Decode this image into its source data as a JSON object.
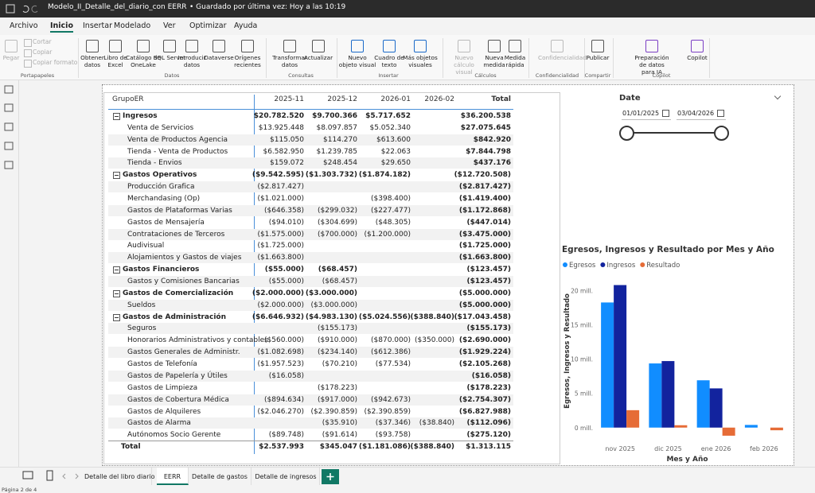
{
  "title_bar": {
    "title": "Modelo_II_Detalle_del_diario_con EERR",
    "save_status": "• Guardado por última vez: Hoy a las 10:19"
  },
  "menu": [
    "Archivo",
    "Inicio",
    "Insertar",
    "Modelado",
    "Ver",
    "Optimizar",
    "Ayuda"
  ],
  "ribbon": {
    "groups": [
      {
        "label": "Portapapeles",
        "buttons": [
          "Pegar",
          "Cortar",
          "Copiar",
          "Copiar formato"
        ]
      },
      {
        "label": "Datos",
        "buttons": [
          "Obtener datos",
          "Libro de Excel",
          "Catálogo de OneLake",
          "SQL Server",
          "Introducir datos",
          "Dataverse",
          "Orígenes recientes"
        ]
      },
      {
        "label": "Consultas",
        "buttons": [
          "Transformar datos",
          "Actualizar"
        ]
      },
      {
        "label": "Insertar",
        "buttons": [
          "Nuevo objeto visual",
          "Cuadro de texto",
          "Más objetos visuales"
        ]
      },
      {
        "label": "Cálculos",
        "buttons": [
          "Nuevo cálculo visual",
          "Nueva medida",
          "Medida rápida"
        ]
      },
      {
        "label": "Confidencialidad",
        "buttons": [
          "Confidencialidad"
        ]
      },
      {
        "label": "Compartir",
        "buttons": [
          "Publicar"
        ]
      },
      {
        "label": "Copilot",
        "buttons": [
          "Preparación de datos para IA",
          "Copilot"
        ]
      }
    ]
  },
  "table": {
    "header": [
      "GrupoER",
      "2025-11",
      "2025-12",
      "2026-01",
      "2026-02",
      "Total"
    ],
    "groups": [
      {
        "row": [
          "Ingresos",
          "$20.782.520",
          "$9.700.366",
          "$5.717.652",
          null,
          "$36.200.538"
        ],
        "items": [
          [
            "Venta de Servicios",
            "$13.925.448",
            "$8.097.857",
            "$5.052.340",
            null,
            "$27.075.645"
          ],
          [
            "Venta de Productos Agencia",
            "$115.050",
            "$114.270",
            "$613.600",
            null,
            "$842.920"
          ],
          [
            "Tienda - Venta de Productos",
            "$6.582.950",
            "$1.239.785",
            "$22.063",
            null,
            "$7.844.798"
          ],
          [
            "Tienda - Envios",
            "$159.072",
            "$248.454",
            "$29.650",
            null,
            "$437.176"
          ]
        ]
      },
      {
        "row": [
          "Gastos Operativos",
          "($9.542.595)",
          "($1.303.732)",
          "($1.874.182)",
          null,
          "($12.720.508)"
        ],
        "items": [
          [
            "Producción Grafica",
            "($2.817.427)",
            null,
            null,
            null,
            "($2.817.427)"
          ],
          [
            "Merchandasing (Op)",
            "($1.021.000)",
            null,
            "($398.400)",
            null,
            "($1.419.400)"
          ],
          [
            "Gastos de Plataformas Varias",
            "($646.358)",
            "($299.032)",
            "($227.477)",
            null,
            "($1.172.868)"
          ],
          [
            "Gastos de Mensajería",
            "($94.010)",
            "($304.699)",
            "($48.305)",
            null,
            "($447.014)"
          ],
          [
            "Contrataciones de Terceros",
            "($1.575.000)",
            "($700.000)",
            "($1.200.000)",
            null,
            "($3.475.000)"
          ],
          [
            "Audivisual",
            "($1.725.000)",
            null,
            null,
            null,
            "($1.725.000)"
          ],
          [
            "Alojamientos y Gastos de viajes",
            "($1.663.800)",
            null,
            null,
            null,
            "($1.663.800)"
          ]
        ]
      },
      {
        "row": [
          "Gastos Financieros",
          "($55.000)",
          "($68.457)",
          null,
          null,
          "($123.457)"
        ],
        "items": [
          [
            "Gastos y Comisiones Bancarias",
            "($55.000)",
            "($68.457)",
            null,
            null,
            "($123.457)"
          ]
        ]
      },
      {
        "row": [
          "Gastos de Comercialización",
          "($2.000.000)",
          "($3.000.000)",
          null,
          null,
          "($5.000.000)"
        ],
        "items": [
          [
            "Sueldos",
            "($2.000.000)",
            "($3.000.000)",
            null,
            null,
            "($5.000.000)"
          ]
        ]
      },
      {
        "row": [
          "Gastos de Administración",
          "($6.646.932)",
          "($4.983.130)",
          "($5.024.556)",
          "($388.840)",
          "($17.043.458)"
        ],
        "items": [
          [
            "Seguros",
            null,
            "($155.173)",
            null,
            null,
            "($155.173)"
          ],
          [
            "Honorarios Administrativos y contables",
            "($560.000)",
            "($910.000)",
            "($870.000)",
            "($350.000)",
            "($2.690.000)"
          ],
          [
            "Gastos Generales de Administr.",
            "($1.082.698)",
            "($234.140)",
            "($612.386)",
            null,
            "($1.929.224)"
          ],
          [
            "Gastos de Telefonía",
            "($1.957.523)",
            "($70.210)",
            "($77.534)",
            null,
            "($2.105.268)"
          ],
          [
            "Gastos de Papelería y Útiles",
            "($16.058)",
            null,
            null,
            null,
            "($16.058)"
          ],
          [
            "Gastos de Limpieza",
            null,
            "($178.223)",
            null,
            null,
            "($178.223)"
          ],
          [
            "Gastos de Cobertura Médica",
            "($894.634)",
            "($917.000)",
            "($942.673)",
            null,
            "($2.754.307)"
          ],
          [
            "Gastos de Alquileres",
            "($2.046.270)",
            "($2.390.859)",
            "($2.390.859)",
            null,
            "($6.827.988)"
          ],
          [
            "Gastos de Alarma",
            null,
            "($35.910)",
            "($37.346)",
            "($38.840)",
            "($112.096)"
          ],
          [
            "Autónomos Socio Gerente",
            "($89.748)",
            "($91.614)",
            "($93.758)",
            null,
            "($275.120)"
          ]
        ]
      }
    ],
    "total": [
      "Total",
      "$2.537.993",
      "$345.047",
      "($1.181.086)",
      "($388.840)",
      "$1.313.115"
    ]
  },
  "slicer": {
    "title": "Date",
    "start": "01/01/2025",
    "end": "03/04/2026"
  },
  "chart_data": {
    "type": "bar",
    "title": "Egresos, Ingresos y Resultado por Mes y Año",
    "x_label": "Mes y Año",
    "y_label": "Egresos, Ingresos y Resultado",
    "categories": [
      "nov 2025",
      "dic 2025",
      "ene 2026",
      "feb 2026"
    ],
    "series": [
      {
        "name": "Egresos",
        "color": "#118dff",
        "values": [
          18244527,
          9355319,
          6898738,
          388840
        ]
      },
      {
        "name": "Ingresos",
        "color": "#12239e",
        "values": [
          20782520,
          9700366,
          5717652,
          null
        ]
      },
      {
        "name": "Resultado",
        "color": "#e66c37",
        "values": [
          2537993,
          345047,
          -1181086,
          -388840
        ]
      }
    ],
    "ylim": [
      -2000000,
      22000000
    ],
    "yticks": [
      {
        "value": 0,
        "label": "0 mill."
      },
      {
        "value": 5000000,
        "label": "5 mill."
      },
      {
        "value": 10000000,
        "label": "10 mill."
      },
      {
        "value": 15000000,
        "label": "15 mill."
      },
      {
        "value": 20000000,
        "label": "20 mill."
      }
    ],
    "grid": false,
    "legend": "top-left"
  },
  "page_tabs": [
    "Detalle del libro diario",
    "EERR",
    "Detalle de gastos",
    "Detalle de ingresos"
  ],
  "status": "Página 2 de 4"
}
